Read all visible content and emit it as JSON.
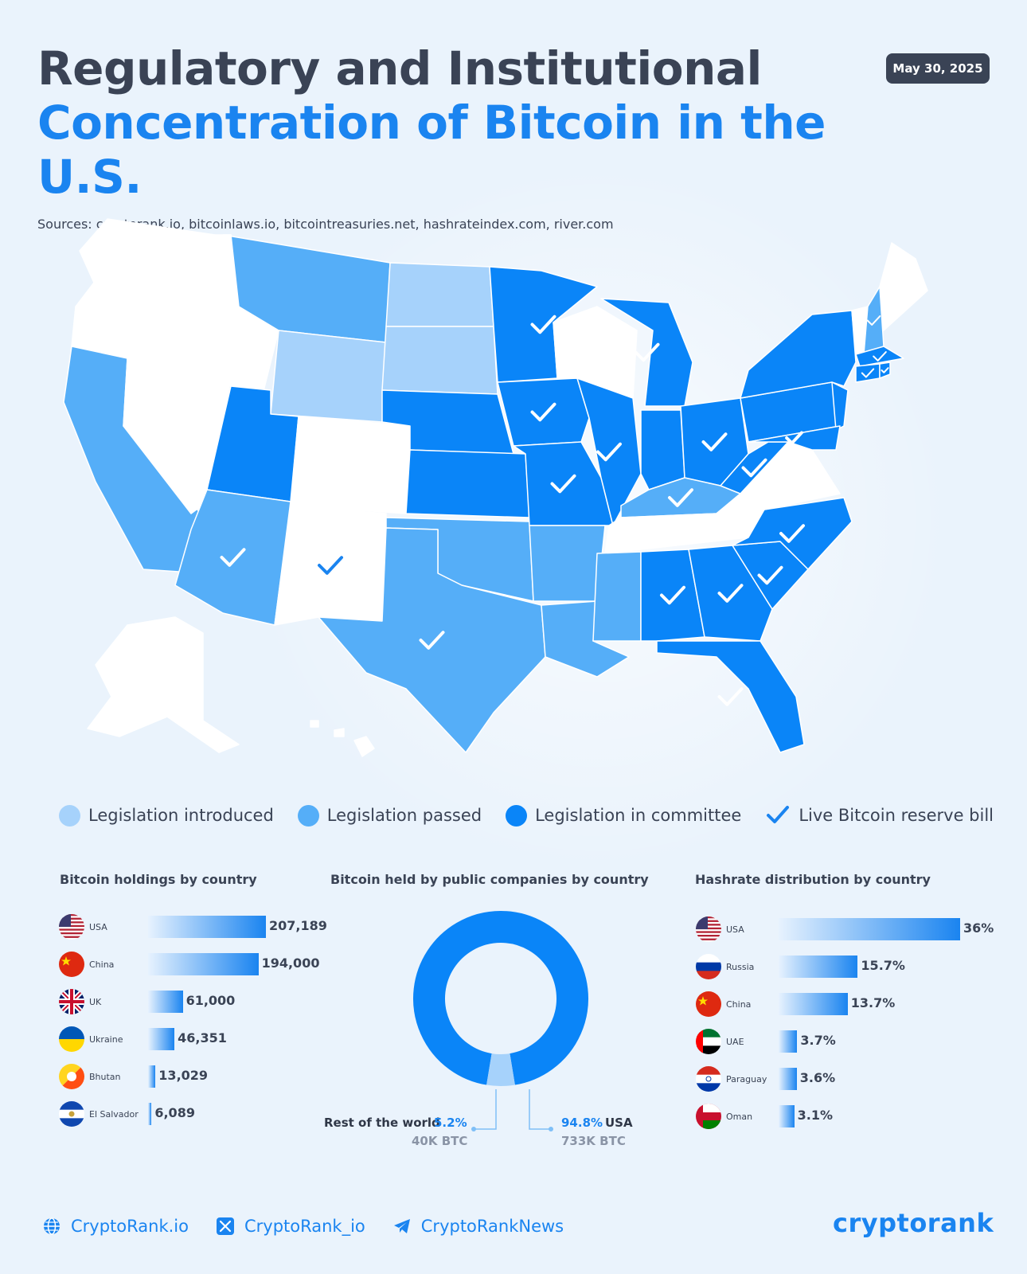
{
  "header": {
    "title_line1": "Regulatory and Institutional",
    "title_line2": "Concentration of Bitcoin in the U.S.",
    "sources": "Sources: cryptorank.io, bitcoinlaws.io, bitcointreasuries.net, hashrateindex.com, river.com",
    "date": "May 30, 2025"
  },
  "colors": {
    "introduced": "#a6d2fb",
    "passed": "#55aef8",
    "committee": "#0a85f8",
    "none": "#ffffff",
    "accent": "#1a84f0",
    "dark_text": "#3a4355"
  },
  "legend": {
    "introduced": "Legislation introduced",
    "passed": "Legislation passed",
    "committee": "Legislation in committee",
    "reserve": "Live Bitcoin reserve bill"
  },
  "map_states": {
    "introduced": [
      "North Dakota",
      "South Dakota",
      "Wyoming"
    ],
    "passed": [
      "Montana",
      "California",
      "Arizona",
      "Texas",
      "Oklahoma",
      "Arkansas",
      "Louisiana",
      "Mississippi",
      "Kentucky",
      "New Hampshire"
    ],
    "committee": [
      "Utah",
      "Nebraska",
      "Kansas",
      "Minnesota",
      "Iowa",
      "Missouri",
      "Illinois",
      "Michigan",
      "Indiana",
      "Ohio",
      "West Virginia",
      "Pennsylvania",
      "New York",
      "New Jersey",
      "Maryland",
      "Massachusetts",
      "Connecticut",
      "Rhode Island",
      "Alabama",
      "Georgia",
      "South Carolina",
      "North Carolina",
      "Florida"
    ],
    "none": [
      "Washington",
      "Oregon",
      "Idaho",
      "Nevada",
      "Colorado",
      "New Mexico",
      "Wisconsin",
      "Tennessee",
      "Virginia",
      "Maine",
      "Vermont",
      "Alaska",
      "Hawaii"
    ],
    "reserve_bill": [
      "Arizona",
      "New Mexico",
      "Texas",
      "Minnesota",
      "Iowa",
      "Missouri",
      "Illinois",
      "Michigan",
      "Ohio",
      "West Virginia",
      "Kentucky",
      "Maryland",
      "North Carolina",
      "South Carolina",
      "Georgia",
      "Alabama",
      "Florida",
      "New Hampshire",
      "Massachusetts",
      "Connecticut",
      "Rhode Island"
    ]
  },
  "chart_data": [
    {
      "type": "bar",
      "title": "Bitcoin holdings by country",
      "categories": [
        "USA",
        "China",
        "UK",
        "Ukraine",
        "Bhutan",
        "El Salvador"
      ],
      "values": [
        207189,
        194000,
        61000,
        46351,
        13029,
        6089
      ],
      "value_labels": [
        "207,189",
        "194,000",
        "61,000",
        "46,351",
        "13,029",
        "6,089"
      ]
    },
    {
      "type": "pie",
      "title": "Bitcoin held by public companies by country",
      "categories": [
        "USA",
        "Rest of the world"
      ],
      "values": [
        94.8,
        5.2
      ],
      "value_labels": [
        "94.8%",
        "5.2%"
      ],
      "sub_labels": [
        "733K BTC",
        "40K BTC"
      ]
    },
    {
      "type": "bar",
      "title": "Hashrate distribution by country",
      "categories": [
        "USA",
        "Russia",
        "China",
        "UAE",
        "Paraguay",
        "Oman"
      ],
      "values": [
        36,
        15.7,
        13.7,
        3.7,
        3.6,
        3.1
      ],
      "value_labels": [
        "36%",
        "15.7%",
        "13.7%",
        "3.7%",
        "3.6%",
        "3.1%"
      ]
    }
  ],
  "footer": {
    "website": "CryptoRank.io",
    "x_handle": "CryptoRank_io",
    "telegram": "CryptoRankNews",
    "brand": "cryptorank",
    "icons": [
      "globe-icon",
      "x-icon",
      "telegram-icon"
    ]
  }
}
